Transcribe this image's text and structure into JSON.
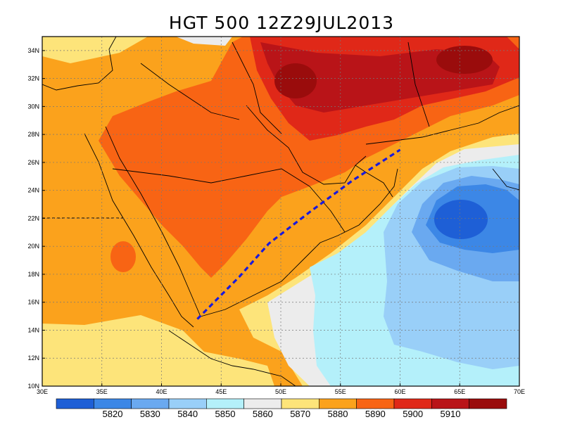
{
  "title": "HGT 500 12Z29JUL2013",
  "map": {
    "lon_range": [
      30,
      70
    ],
    "lat_range": [
      10,
      35
    ],
    "lon_ticks": [
      "30E",
      "35E",
      "40E",
      "45E",
      "50E",
      "55E",
      "60E",
      "65E",
      "70E"
    ],
    "lat_ticks": [
      "10N",
      "12N",
      "14N",
      "16N",
      "18N",
      "20N",
      "22N",
      "24N",
      "26N",
      "28N",
      "30N",
      "32N",
      "34N"
    ],
    "grid": true,
    "dashed_line": {
      "color": "#1a1adc",
      "points": [
        [
          43.0,
          14.8
        ],
        [
          46.5,
          17.8
        ],
        [
          49.0,
          20.2
        ],
        [
          52.5,
          22.5
        ],
        [
          56.0,
          24.7
        ],
        [
          60.0,
          26.9
        ]
      ]
    }
  },
  "colorbar": {
    "labels": [
      "5820",
      "5830",
      "5840",
      "5850",
      "5860",
      "5870",
      "5880",
      "5890",
      "5900",
      "5910"
    ],
    "colors": [
      "#1e5fd6",
      "#3c87e6",
      "#6aa9f0",
      "#99cff8",
      "#b4f0fa",
      "#ececec",
      "#fde47a",
      "#fba21c",
      "#f86414",
      "#e02818",
      "#b91418",
      "#9a0c0c"
    ]
  }
}
